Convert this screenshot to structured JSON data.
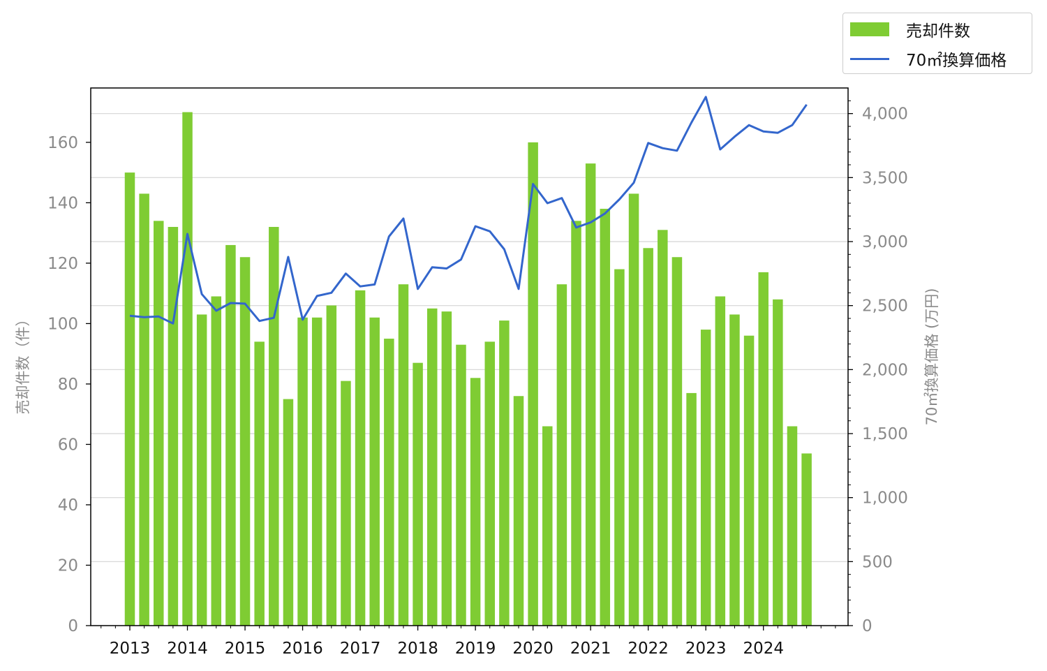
{
  "chart_data": {
    "type": "bar+line",
    "title": "",
    "x_tick_labels": [
      "2013",
      "2014",
      "2015",
      "2016",
      "2017",
      "2018",
      "2019",
      "2020",
      "2021",
      "2022",
      "2023",
      "2024"
    ],
    "periods": [
      "2013 Q1",
      "2013 Q2",
      "2013 Q3",
      "2013 Q4",
      "2014 Q1",
      "2014 Q2",
      "2014 Q3",
      "2014 Q4",
      "2015 Q1",
      "2015 Q2",
      "2015 Q3",
      "2015 Q4",
      "2016 Q1",
      "2016 Q2",
      "2016 Q3",
      "2016 Q4",
      "2017 Q1",
      "2017 Q2",
      "2017 Q3",
      "2017 Q4",
      "2018 Q1",
      "2018 Q2",
      "2018 Q3",
      "2018 Q4",
      "2019 Q1",
      "2019 Q2",
      "2019 Q3",
      "2019 Q4",
      "2020 Q1",
      "2020 Q2",
      "2020 Q3",
      "2020 Q4",
      "2021 Q1",
      "2021 Q2",
      "2021 Q3",
      "2021 Q4",
      "2022 Q1",
      "2022 Q2",
      "2022 Q3",
      "2022 Q4",
      "2023 Q1",
      "2023 Q2",
      "2023 Q3",
      "2023 Q4",
      "2024 Q1",
      "2024 Q2",
      "2024 Q3",
      "2024 Q4"
    ],
    "series": [
      {
        "name": "売却件数",
        "type": "bar",
        "axis": "left",
        "color": "#7fcc33",
        "values": [
          150,
          143,
          134,
          132,
          170,
          103,
          109,
          126,
          122,
          94,
          132,
          75,
          102,
          102,
          106,
          81,
          111,
          102,
          95,
          113,
          87,
          105,
          104,
          93,
          82,
          94,
          101,
          76,
          160,
          66,
          113,
          134,
          153,
          138,
          118,
          143,
          125,
          131,
          122,
          77,
          98,
          109,
          103,
          96,
          117,
          108,
          66,
          57
        ]
      },
      {
        "name": "70㎡換算価格",
        "type": "line",
        "axis": "right",
        "color": "#3366cc",
        "values": [
          2420,
          2410,
          2415,
          2360,
          3060,
          2590,
          2460,
          2520,
          2515,
          2380,
          2405,
          2880,
          2390,
          2575,
          2600,
          2750,
          2650,
          2665,
          3040,
          3180,
          2630,
          2800,
          2790,
          2860,
          3120,
          3080,
          2940,
          2630,
          3450,
          3300,
          3340,
          3110,
          3150,
          3220,
          3330,
          3460,
          3770,
          3730,
          3710,
          3930,
          4130,
          3720,
          3820,
          3910,
          3860,
          3850,
          3910,
          4070
        ]
      }
    ],
    "left_axis": {
      "label": "売却件数（件）",
      "ylim": [
        0,
        178
      ],
      "ticks": [
        "0",
        "20",
        "40",
        "60",
        "80",
        "100",
        "120",
        "140",
        "160"
      ]
    },
    "right_axis": {
      "label": "70㎡換算価格 (万円)",
      "ylim": [
        0,
        4200
      ],
      "ticks": [
        "0",
        "500",
        "1,000",
        "1,500",
        "2,000",
        "2,500",
        "3,000",
        "3,500",
        "4,000"
      ]
    },
    "grid": "horizontal (right axis)",
    "legend_position": "top-right, outside plot"
  },
  "legend": {
    "bar_label": "売却件数",
    "line_label": "70㎡換算価格"
  }
}
